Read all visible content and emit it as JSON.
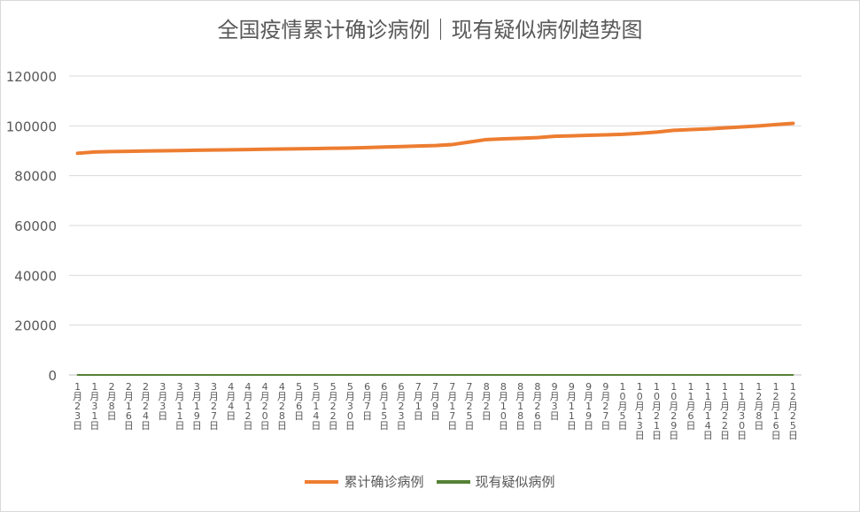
{
  "chart_data": {
    "type": "line",
    "title": "全国疫情累计确诊病例｜现有疑似病例趋势图",
    "xlabel": "",
    "ylabel": "",
    "ylim": [
      0,
      120000
    ],
    "yticks": [
      "0",
      "20000",
      "40000",
      "60000",
      "80000",
      "100000",
      "120000"
    ],
    "grid": true,
    "legend_position": "bottom",
    "categories": [
      "1月23日",
      "1月31日",
      "2月8日",
      "2月16日",
      "2月24日",
      "3月3日",
      "3月11日",
      "3月19日",
      "3月27日",
      "4月4日",
      "4月12日",
      "4月20日",
      "4月28日",
      "5月6日",
      "5月14日",
      "5月22日",
      "5月30日",
      "6月7日",
      "6月15日",
      "6月23日",
      "7月1日",
      "7月9日",
      "7月17日",
      "7月25日",
      "8月2日",
      "8月10日",
      "8月18日",
      "8月26日",
      "9月3日",
      "9月11日",
      "9月19日",
      "9月27日",
      "10月5日",
      "10月13日",
      "10月21日",
      "10月29日",
      "11月6日",
      "11月14日",
      "11月22日",
      "11月30日",
      "12月8日",
      "12月16日",
      "12月25日"
    ],
    "series": [
      {
        "name": "累计确诊病例",
        "color": "#ed7d31",
        "values": [
          89000,
          89500,
          89700,
          89800,
          89900,
          90000,
          90100,
          90200,
          90300,
          90400,
          90500,
          90600,
          90700,
          90800,
          90900,
          91000,
          91100,
          91300,
          91500,
          91700,
          91900,
          92100,
          92500,
          93500,
          94500,
          94800,
          95000,
          95300,
          95800,
          96000,
          96200,
          96400,
          96600,
          97000,
          97500,
          98200,
          98500,
          98800,
          99200,
          99600,
          100000,
          100500,
          101000
        ]
      },
      {
        "name": "现有疑似病例",
        "color": "#548235",
        "values": [
          0,
          0,
          0,
          0,
          0,
          0,
          0,
          0,
          0,
          0,
          0,
          0,
          0,
          0,
          0,
          0,
          0,
          0,
          0,
          0,
          0,
          0,
          0,
          0,
          0,
          0,
          0,
          0,
          0,
          0,
          0,
          0,
          0,
          0,
          0,
          0,
          0,
          0,
          0,
          0,
          0,
          0,
          0
        ]
      }
    ]
  }
}
